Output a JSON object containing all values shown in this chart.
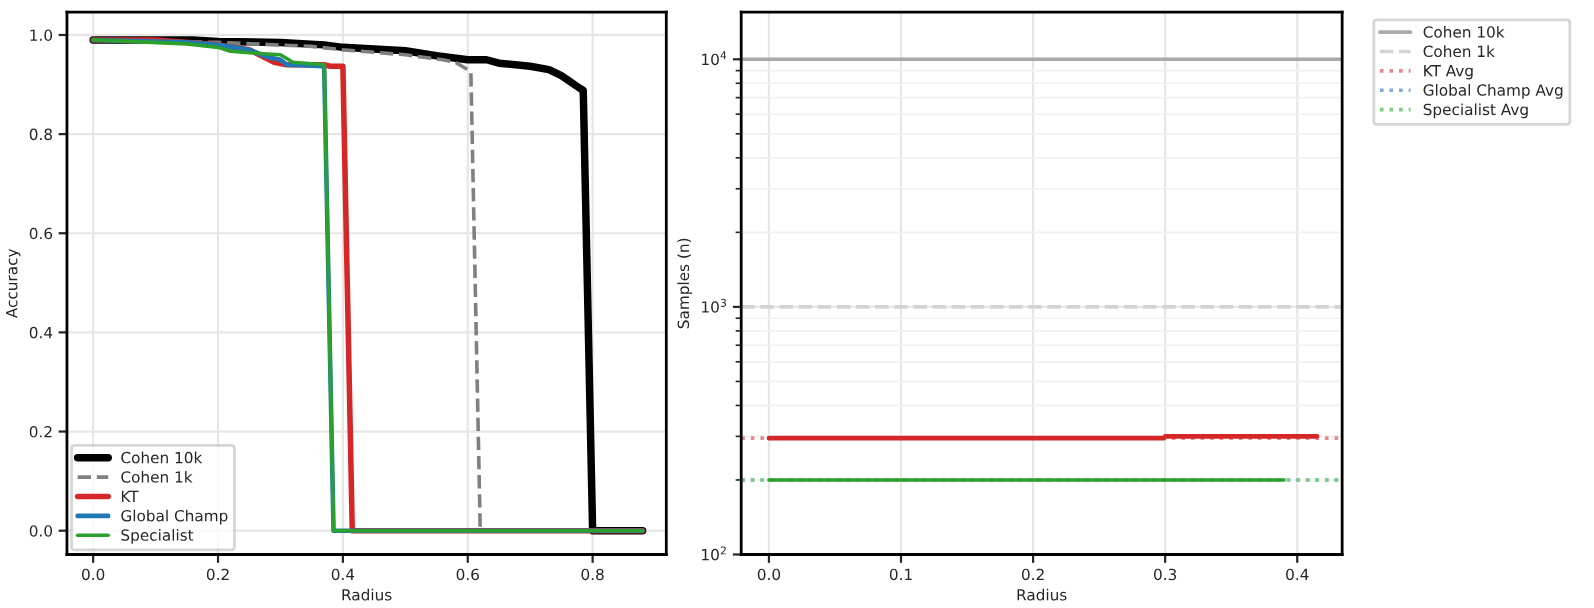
{
  "chart_data": [
    {
      "type": "line",
      "xlabel": "Radius",
      "ylabel": "Accuracy",
      "xlim": [
        -0.042,
        0.918
      ],
      "ylim": [
        -0.048,
        1.046
      ],
      "xticks": [
        {
          "value": 0.0,
          "label": "0.0"
        },
        {
          "value": 0.2,
          "label": "0.2"
        },
        {
          "value": 0.4,
          "label": "0.4"
        },
        {
          "value": 0.6,
          "label": "0.6"
        },
        {
          "value": 0.8,
          "label": "0.8"
        }
      ],
      "yticks": [
        {
          "value": 0.0,
          "label": "0.0"
        },
        {
          "value": 0.2,
          "label": "0.2"
        },
        {
          "value": 0.4,
          "label": "0.4"
        },
        {
          "value": 0.6,
          "label": "0.6"
        },
        {
          "value": 0.8,
          "label": "0.8"
        },
        {
          "value": 1.0,
          "label": "1.0"
        }
      ],
      "grid": true,
      "legend": "bottom left",
      "marker": "none",
      "series": [
        {
          "name": "Cohen 10k",
          "color": "#000000",
          "line_style": "solid",
          "x": [
            0,
            0.16,
            0.2,
            0.3,
            0.37,
            0.4,
            0.5,
            0.55,
            0.6,
            0.63,
            0.65,
            0.7,
            0.73,
            0.75,
            0.78,
            0.785,
            0.8,
            0.88
          ],
          "values": [
            0.99,
            0.99,
            0.987,
            0.985,
            0.98,
            0.975,
            0.968,
            0.958,
            0.95,
            0.95,
            0.943,
            0.937,
            0.93,
            0.918,
            0.892,
            0.888,
            0.0,
            0.0
          ]
        },
        {
          "name": "Cohen 1k",
          "color": "#808080",
          "line_style": "dashed",
          "x": [
            0,
            0.2,
            0.35,
            0.4,
            0.5,
            0.56,
            0.58,
            0.6,
            0.605,
            0.62
          ],
          "values": [
            0.99,
            0.985,
            0.977,
            0.97,
            0.96,
            0.95,
            0.945,
            0.93,
            0.925,
            0.0
          ]
        },
        {
          "name": "KT",
          "color": "#d62728",
          "line_style": "solid",
          "x": [
            0,
            0.1,
            0.2,
            0.25,
            0.29,
            0.31,
            0.37,
            0.38,
            0.4,
            0.415,
            0.88
          ],
          "values": [
            0.99,
            0.99,
            0.98,
            0.97,
            0.945,
            0.94,
            0.94,
            0.937,
            0.937,
            0.0,
            0.0
          ]
        },
        {
          "name": "Global Champ",
          "color": "#1f77b4",
          "line_style": "solid",
          "x": [
            0,
            0.15,
            0.2,
            0.25,
            0.28,
            0.3,
            0.31,
            0.37,
            0.385,
            0.88
          ],
          "values": [
            0.99,
            0.985,
            0.98,
            0.97,
            0.955,
            0.95,
            0.94,
            0.937,
            0.0,
            0.0
          ]
        },
        {
          "name": "Specialist",
          "color": "#2ca02c",
          "line_style": "solid",
          "x": [
            0,
            0.15,
            0.2,
            0.22,
            0.26,
            0.3,
            0.32,
            0.37,
            0.385,
            0.88
          ],
          "values": [
            0.99,
            0.982,
            0.975,
            0.967,
            0.963,
            0.96,
            0.945,
            0.94,
            0.0,
            0.0
          ]
        }
      ]
    },
    {
      "type": "line",
      "xlabel": "Radius",
      "ylabel": "Samples (n)",
      "log": "y",
      "xlim": [
        -0.021,
        0.434
      ],
      "ylim": [
        100,
        15500
      ],
      "xticks": [
        {
          "value": 0.0,
          "label": "0.0"
        },
        {
          "value": 0.1,
          "label": "0.1"
        },
        {
          "value": 0.2,
          "label": "0.2"
        },
        {
          "value": 0.3,
          "label": "0.3"
        },
        {
          "value": 0.4,
          "label": "0.4"
        }
      ],
      "yticks": [
        {
          "value": 100,
          "label": "10$^{2}$"
        },
        {
          "value": 1000,
          "label": "10$^{3}$"
        },
        {
          "value": 10000,
          "label": "10$^{4}$"
        }
      ],
      "grid": true,
      "legend": "top right",
      "marker": "none",
      "series": [
        {
          "color": "#d62728",
          "line_style": "solid",
          "x": [
            0,
            0.299,
            0.3,
            0.415
          ],
          "values": [
            295,
            295,
            300,
            300
          ]
        },
        {
          "color": "#2ca02c",
          "line_style": "solid",
          "x": [
            0,
            0.39
          ],
          "values": [
            200,
            200
          ]
        }
      ],
      "ref_lines": [
        {
          "axis": "y",
          "value": 10000,
          "label": "Cohen 10k",
          "color": "#aaaaaa",
          "line_style": "solid"
        },
        {
          "axis": "y",
          "value": 1000,
          "label": "Cohen 1k",
          "color": "#d3d3d3",
          "line_style": "dashed"
        },
        {
          "axis": "y",
          "value": 295,
          "label": "KT Avg",
          "color": "#e88a8a",
          "line_style": "dotted"
        },
        {
          "axis": "y",
          "value": 200,
          "label": "Global Champ Avg",
          "color": "#7fa9d6",
          "line_style": "dotted"
        },
        {
          "axis": "y",
          "value": 200,
          "label": "Specialist Avg",
          "color": "#7ccf7c",
          "line_style": "dotted"
        }
      ]
    }
  ]
}
